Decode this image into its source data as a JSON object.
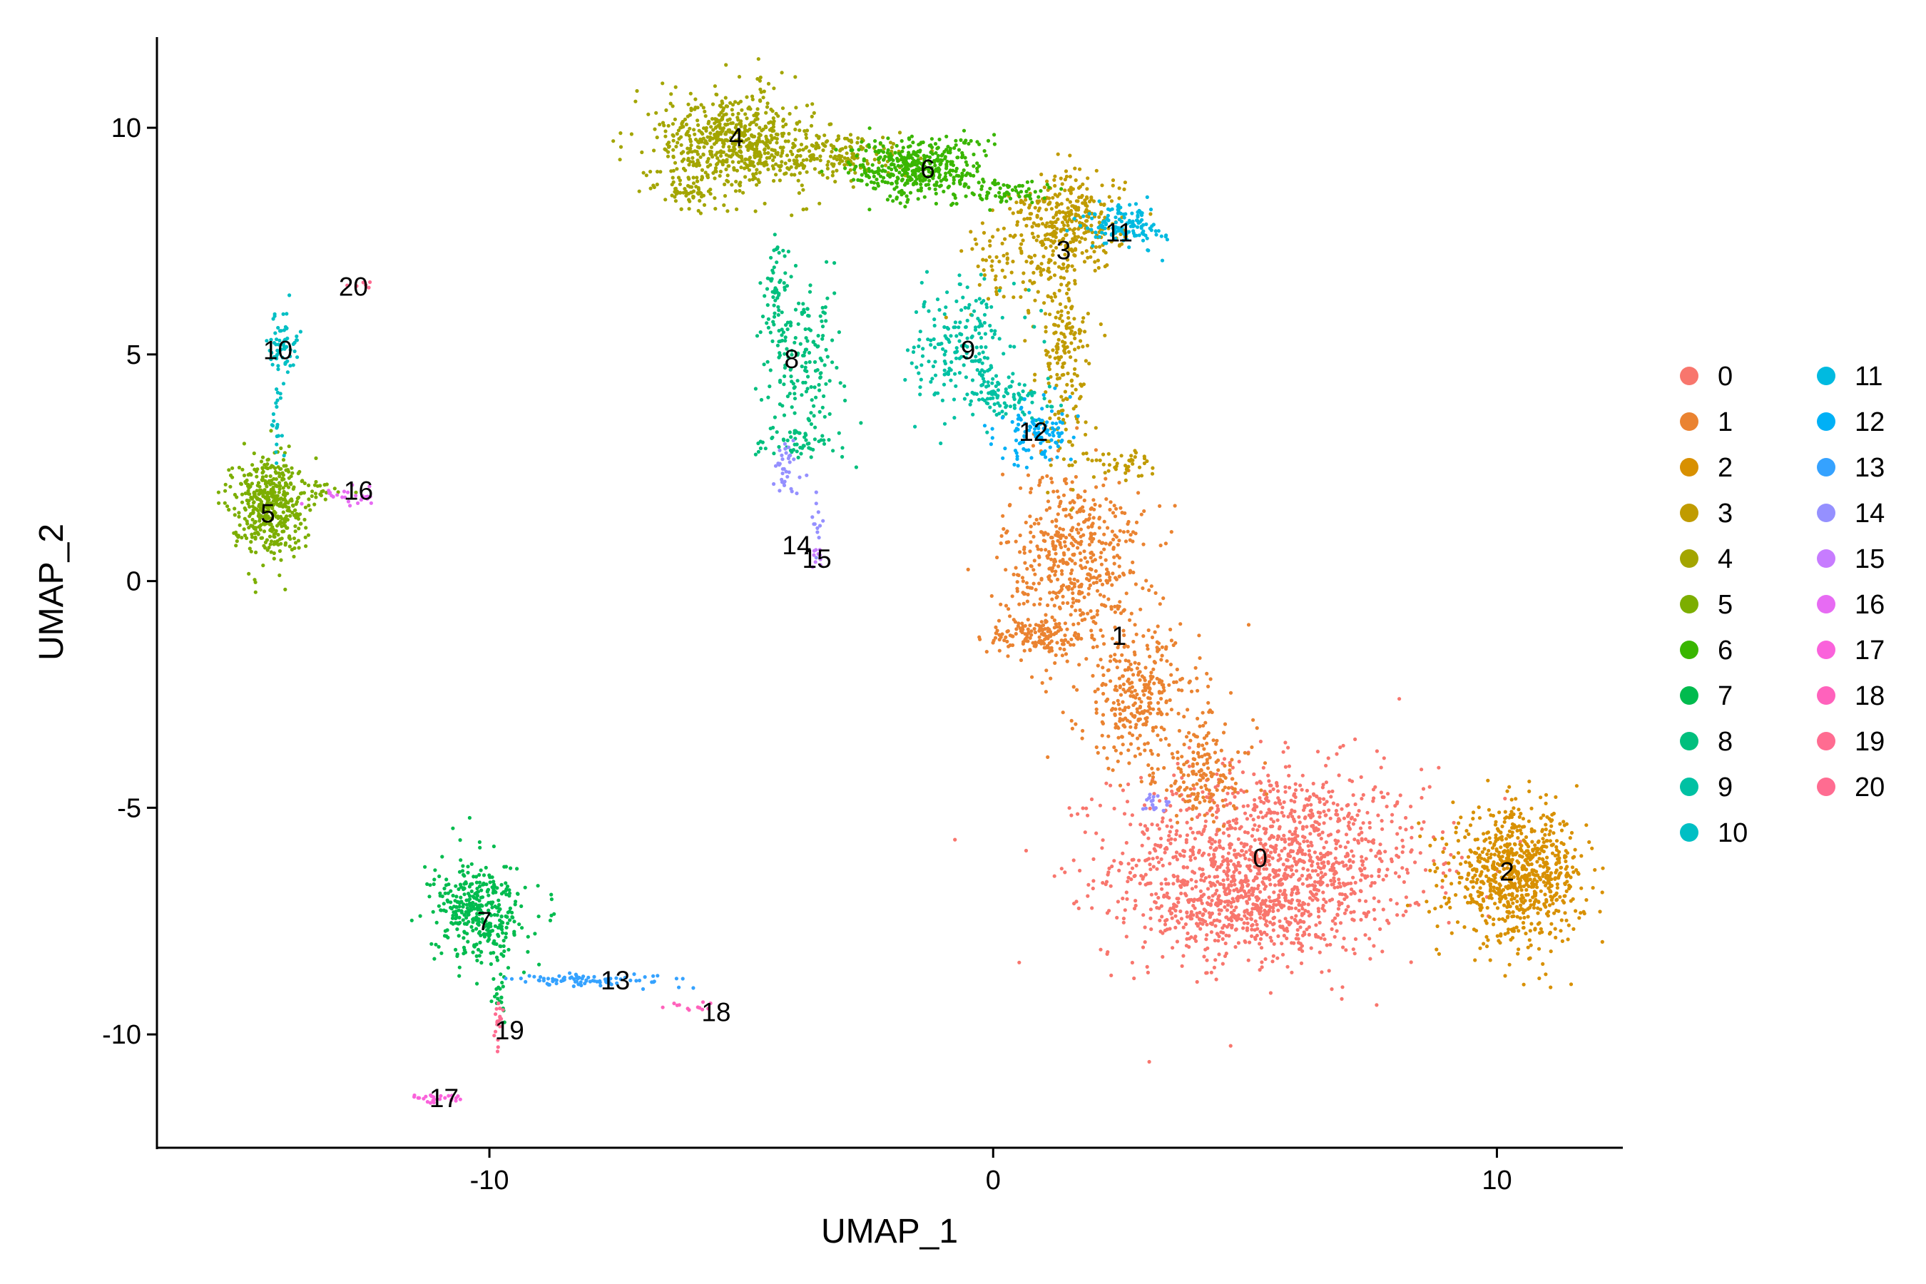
{
  "chart_data": {
    "type": "scatter",
    "xlabel": "UMAP_1",
    "ylabel": "UMAP_2",
    "xlim": [
      -16.6,
      12.5
    ],
    "ylim": [
      -12.5,
      12.0
    ],
    "x_ticks": [
      {
        "value": -10,
        "label": "-10"
      },
      {
        "value": 0,
        "label": "0"
      },
      {
        "value": 10,
        "label": "10"
      }
    ],
    "y_ticks": [
      {
        "value": 10,
        "label": "10"
      },
      {
        "value": 5,
        "label": "5"
      },
      {
        "value": 0,
        "label": "0"
      },
      {
        "value": -5,
        "label": "-5"
      },
      {
        "value": -10,
        "label": "-10"
      }
    ],
    "grid": false,
    "legend_position": "right",
    "clusters": [
      {
        "name": "0",
        "color": "#F8766D",
        "label_at": [
          5.3,
          -6.1
        ],
        "regions": [
          {
            "c": [
              5.5,
              -6.2
            ],
            "s": [
              1.55,
              1.05
            ],
            "n": 1400
          },
          {
            "c": [
              4.8,
              -7.3
            ],
            "s": [
              0.9,
              0.45
            ],
            "n": 250
          }
        ]
      },
      {
        "name": "1",
        "color": "#E68613",
        "label_at": [
          2.5,
          -1.2
        ],
        "regions": [
          {
            "c": [
              1.6,
              0.5
            ],
            "s": [
              0.7,
              1.0
            ],
            "n": 520
          },
          {
            "c": [
              0.9,
              -1.2
            ],
            "s": [
              0.5,
              0.22
            ],
            "n": 130
          },
          {
            "c": [
              2.9,
              -2.6
            ],
            "s": [
              0.6,
              0.75
            ],
            "n": 320
          },
          {
            "c": [
              4.2,
              -4.3
            ],
            "s": [
              0.5,
              0.55
            ],
            "n": 160
          }
        ]
      },
      {
        "name": "2",
        "color": "#CD9600",
        "label_at": [
          10.2,
          -6.4
        ],
        "regions": [
          {
            "c": [
              10.4,
              -6.5
            ],
            "s": [
              0.65,
              0.7
            ],
            "n": 800
          }
        ]
      },
      {
        "name": "3",
        "color": "#ABA300",
        "label_at": [
          1.4,
          7.3
        ],
        "regions": [
          {
            "c": [
              1.6,
              7.9
            ],
            "s": [
              0.5,
              0.55
            ],
            "n": 300
          },
          {
            "c": [
              1.4,
              5.0
            ],
            "s": [
              0.25,
              1.2
            ],
            "n": 200
          },
          {
            "c": [
              0.5,
              7.2
            ],
            "s": [
              0.55,
              0.7
            ],
            "n": 110
          },
          {
            "c": [
              2.5,
              2.6
            ],
            "s": [
              0.35,
              0.15
            ],
            "n": 45
          }
        ]
      },
      {
        "name": "4",
        "color": "#7CAE00",
        "label_at": [
          -5.1,
          9.8
        ],
        "regions": [
          {
            "c": [
              -5.2,
              9.7
            ],
            "s": [
              0.75,
              0.55
            ],
            "n": 600
          },
          {
            "c": [
              -6.0,
              8.6
            ],
            "s": [
              0.25,
              0.2
            ],
            "n": 55
          },
          {
            "c": [
              -3.2,
              9.4
            ],
            "s": [
              0.8,
              0.3
            ],
            "n": 200
          }
        ]
      },
      {
        "name": "5",
        "color": "#0CB702",
        "label_at": [
          -14.4,
          1.5
        ],
        "regions": [
          {
            "c": [
              -14.4,
              1.7
            ],
            "s": [
              0.35,
              0.55
            ],
            "n": 460
          },
          {
            "c": [
              -13.4,
              2.0
            ],
            "s": [
              0.4,
              0.12
            ],
            "n": 25
          }
        ]
      },
      {
        "name": "6",
        "color": "#00BE67",
        "label_at": [
          -1.3,
          9.1
        ],
        "regions": [
          {
            "c": [
              -1.5,
              9.1
            ],
            "s": [
              0.65,
              0.35
            ],
            "n": 420
          },
          {
            "c": [
              0.3,
              8.6
            ],
            "s": [
              0.5,
              0.15
            ],
            "n": 70
          }
        ]
      },
      {
        "name": "7",
        "color": "#00C19A",
        "label_at": [
          -10.1,
          -7.5
        ],
        "regions": [
          {
            "c": [
              -10.2,
              -7.3
            ],
            "s": [
              0.45,
              0.55
            ],
            "n": 380
          },
          {
            "c": [
              -9.8,
              -9.0
            ],
            "s": [
              0.06,
              0.3
            ],
            "n": 20
          }
        ]
      },
      {
        "name": "8",
        "color": "#00BFC4",
        "label_at": [
          -4.0,
          4.9
        ],
        "regions": [
          {
            "c": [
              -3.8,
              4.8
            ],
            "s": [
              0.4,
              0.8
            ],
            "n": 180
          },
          {
            "c": [
              -4.3,
              6.6
            ],
            "s": [
              0.12,
              0.5
            ],
            "n": 40
          },
          {
            "c": [
              -3.9,
              3.1
            ],
            "s": [
              0.45,
              0.2
            ],
            "n": 60
          }
        ]
      },
      {
        "name": "9",
        "color": "#00B8E7",
        "label_at": [
          -0.5,
          5.1
        ],
        "regions": [
          {
            "c": [
              -0.6,
              5.2
            ],
            "s": [
              0.5,
              0.7
            ],
            "n": 200
          },
          {
            "c": [
              0.3,
              4.1
            ],
            "s": [
              0.45,
              0.25
            ],
            "n": 90
          }
        ]
      },
      {
        "name": "10",
        "color": "#00A9FF",
        "label_at": [
          -14.2,
          5.1
        ],
        "regions": [
          {
            "c": [
              -14.1,
              5.2
            ],
            "s": [
              0.14,
              0.35
            ],
            "n": 60
          },
          {
            "c": [
              -14.2,
              3.8
            ],
            "s": [
              0.08,
              0.55
            ],
            "n": 25
          }
        ]
      },
      {
        "name": "11",
        "color": "#8494FF",
        "label_at": [
          2.5,
          7.7
        ],
        "regions": [
          {
            "c": [
              2.6,
              7.85
            ],
            "s": [
              0.4,
              0.25
            ],
            "n": 130
          }
        ]
      },
      {
        "name": "12",
        "color": "#C77CFF",
        "label_at": [
          0.8,
          3.3
        ],
        "regions": [
          {
            "c": [
              0.9,
              3.3
            ],
            "s": [
              0.4,
              0.35
            ],
            "n": 110
          }
        ]
      },
      {
        "name": "13",
        "color": "#ED68ED",
        "label_at": [
          -7.5,
          -8.8
        ],
        "regions": [
          {
            "c": [
              -7.9,
              -8.8
            ],
            "s": [
              0.8,
              0.07
            ],
            "n": 85
          }
        ]
      },
      {
        "name": "14",
        "color": "#FF61CC",
        "label_at": [
          -3.9,
          0.8
        ],
        "regions": [
          {
            "c": [
              -4.1,
              2.4
            ],
            "s": [
              0.15,
              0.3
            ],
            "n": 35
          },
          {
            "c": [
              -3.5,
              1.2
            ],
            "s": [
              0.1,
              0.4
            ],
            "n": 12
          },
          {
            "c": [
              3.2,
              -4.9
            ],
            "s": [
              0.17,
              0.1
            ],
            "n": 20
          }
        ]
      },
      {
        "name": "15",
        "color": "#FF68A1",
        "label_at": [
          -3.5,
          0.5
        ],
        "regions": [
          {
            "c": [
              -3.5,
              0.55
            ],
            "s": [
              0.07,
              0.12
            ],
            "n": 10
          }
        ]
      },
      {
        "name": "16",
        "color": "#F8766D",
        "label_at": [
          -12.6,
          2.0
        ],
        "regions": [
          {
            "c": [
              -12.8,
              1.9
            ],
            "s": [
              0.3,
              0.12
            ],
            "n": 25
          }
        ]
      },
      {
        "name": "17",
        "color": "#E68613",
        "label_at": [
          -10.9,
          -11.4
        ],
        "regions": [
          {
            "c": [
              -11.0,
              -11.4
            ],
            "s": [
              0.28,
              0.06
            ],
            "n": 25
          }
        ]
      },
      {
        "name": "18",
        "color": "#CD9600",
        "label_at": [
          -5.5,
          -9.5
        ],
        "regions": [
          {
            "c": [
              -6.0,
              -9.4
            ],
            "s": [
              0.3,
              0.06
            ],
            "n": 12
          }
        ]
      },
      {
        "name": "19",
        "color": "#ABA300",
        "label_at": [
          -9.6,
          -9.9
        ],
        "regions": [
          {
            "c": [
              -9.8,
              -9.8
            ],
            "s": [
              0.05,
              0.25
            ],
            "n": 18
          }
        ]
      },
      {
        "name": "20",
        "color": "#7CAE00",
        "label_at": [
          -12.7,
          6.5
        ],
        "regions": [
          {
            "c": [
              -12.5,
              6.6
            ],
            "s": [
              0.1,
              0.05
            ],
            "n": 6
          }
        ]
      }
    ]
  },
  "legend_colors": [
    "#F8766D",
    "#EA8331",
    "#D89000",
    "#C09B00",
    "#A3A500",
    "#7CAE00",
    "#39B600",
    "#00BB4E",
    "#00BF7D",
    "#00C1A3",
    "#00BFC4",
    "#00BAE0",
    "#00B0F6",
    "#35A2FF",
    "#9590FF",
    "#C77CFF",
    "#E76BF3",
    "#FA62DB",
    "#FF62BC",
    "#FF6C91",
    "#FF6C91"
  ]
}
